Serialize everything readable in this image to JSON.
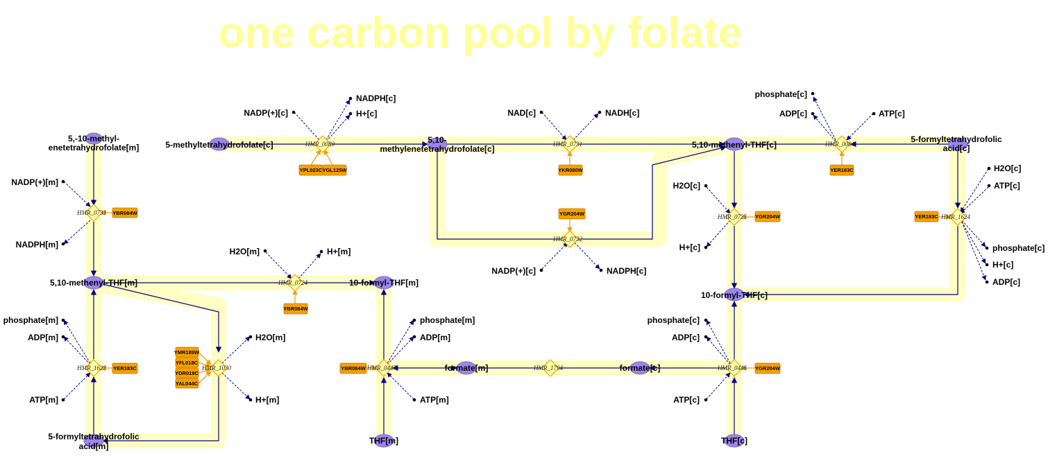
{
  "title": "one carbon pool by folate",
  "metabolites": {
    "m5_10_methylene_m": "5,-10-methyl-",
    "m5_10_methylene_m_2": "enetetrahydrofolate[m]",
    "m5_methylthf_c": "5-methyltetrahydrofolate[c]",
    "m5_10_methylenethf_c": "5,10-",
    "m5_10_methylenethf_c_2": "methylenetetrahydrofolate[c]",
    "m5_10_methenylthf_c": "5,10-methenyl-THF[c]",
    "m5_formylthf_acid_c": "5-formyltetrahydrofolic",
    "m5_formylthf_acid_c_2": "acid[c]",
    "m5_10_methenylthf_m": "5,10-methenyl-THF[m]",
    "m10_formylthf_m": "10-formyl-THF[m]",
    "m10_formylthf_c": "10-formyl-THF[c]",
    "formate_m": "formate[m]",
    "formate_c": "formate[c]",
    "thf_m": "THF[m]",
    "thf_c": "THF[c]",
    "m5_formylthf_acid_m": "5-formyltetrahydrofolic",
    "m5_formylthf_acid_m_2": "acid[m]"
  },
  "side_metabolites": {
    "nadp_m_0733": "NADP(+)[m]",
    "nadph_m_0733": "NADPH[m]",
    "nadp_c_0080": "NADP(+)[c]",
    "nadph_c_0080": "NADPH[c]",
    "h_c_0080": "H+[c]",
    "nad_c_0731": "NAD[c]",
    "nadh_c_0731": "NADH[c]",
    "phosphate_c_0084": "phosphate[c]",
    "adp_c_0084": "ADP[c]",
    "atp_c_0084": "ATP[c]",
    "h2o_c_1624": "H2O[c]",
    "atp_c_1624": "ATP[c]",
    "phosphate_c_1624": "phosphate[c]",
    "h_c_1624": "H+[c]",
    "adp_c_1624": "ADP[c]",
    "nadp_c_0732": "NADP(+)[c]",
    "nadph_c_0732": "NADPH[c]",
    "h2o_c_0725": "H2O[c]",
    "h_c_0725": "H+[c]",
    "h2o_m_0724": "H2O[m]",
    "h_m_0724": "H+[m]",
    "phosphate_m_1623": "phosphate[m]",
    "adp_m_1623": "ADP[m]",
    "atp_m_1623": "ATP[m]",
    "h2o_m_1030": "H2O[m]",
    "h_m_1030": "H+[m]",
    "phosphate_m_0447": "phosphate[m]",
    "adp_m_0447": "ADP[m]",
    "atp_m_0447": "ATP[m]",
    "phosphate_c_0446": "phosphate[c]",
    "adp_c_0446": "ADP[c]",
    "atp_c_0446": "ATP[c]"
  },
  "reactions": {
    "r0733": "HMR_0733",
    "r0080": "HMR_0080",
    "r0731": "HMR_0731",
    "r0084": "HMR_0084",
    "r1624": "HMR_1624",
    "r0732": "HMR_0732",
    "r0725": "HMR_0725",
    "r0724": "HMR_0724",
    "r1623": "HMR_1623",
    "r1030": "HMR_1030",
    "r0447": "HMR_0447",
    "r1794": "HMR_1794",
    "r0446": "HMR_0446"
  },
  "genes": {
    "g0733": "YBR084W",
    "g0080a": "YPL023C",
    "g0080b": "YGL125W",
    "g0731": "YKR080W",
    "g0084": "YER183C",
    "g1624": "YER183C",
    "g0732": "YGR204W",
    "g0725": "YGR204W",
    "g0724": "YBR084W",
    "g1623": "YER183C",
    "g1030a": "YMR189W",
    "g1030b": "YFL018C",
    "g1030c": "YDR019C",
    "g1030d": "YAL044C",
    "g0447": "YBR084W",
    "g0446": "YGR204W"
  },
  "colors": {
    "title": "#ffff99",
    "pool_highlight": "#ffffc4",
    "metabolite_node": "#9b86ec",
    "reaction_diamond": "#ffffa8",
    "gene_box": "#f5a000",
    "edge": "#00008b"
  }
}
